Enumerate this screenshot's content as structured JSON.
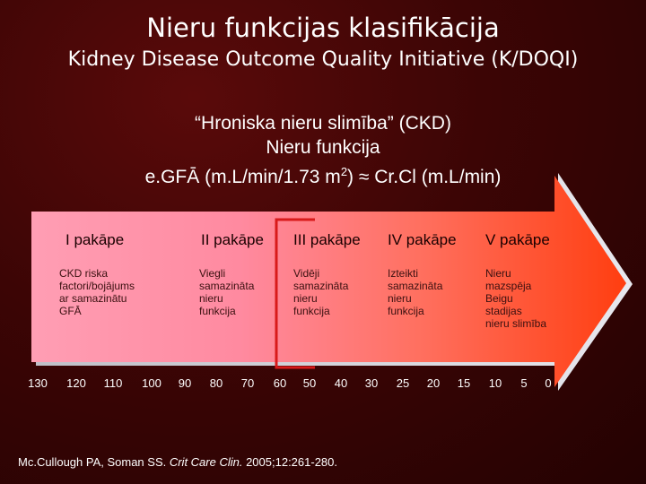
{
  "title": "Nieru funkcijas klasifikācija",
  "subtitle": "Kidney Disease Outcome Quality Initiative (K/DOQI)",
  "definition": {
    "line1": "“Hroniska nieru slimība” (CKD)",
    "line2": "Nieru funkcija",
    "line3_prefix": "e.GFĀ (m.L/min/1.73 m",
    "line3_sup": "2",
    "line3_suffix": ") ≈ Cr.Cl (m.L/min)"
  },
  "stages": [
    {
      "label": "I pakāpe",
      "description": [
        "CKD riska",
        "factori/bojājums",
        "ar samazinātu",
        "GFĀ"
      ]
    },
    {
      "label": "II pakāpe",
      "description": [
        "Viegli",
        "samazināta",
        "nieru",
        "funkcija"
      ]
    },
    {
      "label": "III pakāpe",
      "description": [
        "Vidēji",
        "samazināta",
        "nieru",
        "funkcija"
      ]
    },
    {
      "label": "IV pakāpe",
      "description": [
        "Izteikti",
        "samazināta",
        "nieru",
        "funkcija"
      ]
    },
    {
      "label": "V pakāpe",
      "description": [
        "Nieru",
        "mazspēja",
        "Beigu",
        "stadijas",
        "nieru slimība"
      ]
    }
  ],
  "scale_ticks": [
    "130",
    "120",
    "110",
    "100",
    "90",
    "80",
    "70",
    "60",
    "50",
    "40",
    "30",
    "25",
    "20",
    "15",
    "10",
    "5",
    "0"
  ],
  "citation": {
    "authors": "Mc.Cullough PA, Soman SS. ",
    "journal": "Crit Care Clin.",
    "details": " 2005;12:261-280."
  },
  "colors": {
    "arrow_left": "#ff9ab0",
    "arrow_right": "#ff4a16",
    "bracket": "#d81a1a",
    "text_dark": "#1a0000"
  }
}
